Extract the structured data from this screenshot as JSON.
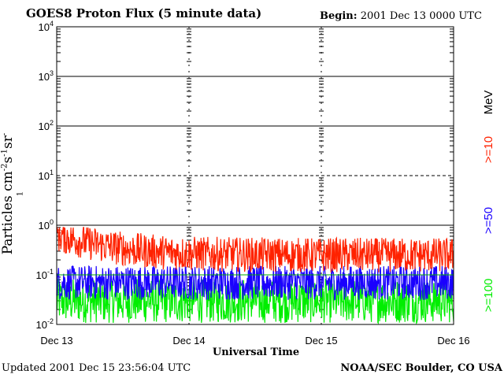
{
  "header": {
    "title": "GOES8 Proton Flux (5 minute data)",
    "begin_label": "Begin:",
    "begin_value": "2001 Dec 13 0000 UTC"
  },
  "footer": {
    "updated_label": "Updated",
    "updated_value": "2001 Dec 15 23:56:04 UTC",
    "credit": "NOAA/SEC Boulder, CO USA"
  },
  "colors": {
    "ge10": "#ff2200",
    "ge50": "#1a00ff",
    "ge100": "#00ee00",
    "threshold": "#00aa00"
  },
  "chart_data": {
    "type": "line",
    "title": "GOES8 Proton Flux (5 minute data)",
    "xlabel": "Universal Time",
    "ylabel": "Particles cm-2s-1sr-1",
    "yscale": "log",
    "ylim": [
      0.01,
      10000
    ],
    "ytick_labels": [
      {
        "base": "10",
        "exp": "-2",
        "value": 0.01
      },
      {
        "base": "10",
        "exp": "-1",
        "value": 0.1
      },
      {
        "base": "10",
        "exp": "0",
        "value": 1
      },
      {
        "base": "10",
        "exp": "1",
        "value": 10
      },
      {
        "base": "10",
        "exp": "2",
        "value": 100
      },
      {
        "base": "10",
        "exp": "3",
        "value": 1000
      },
      {
        "base": "10",
        "exp": "4",
        "value": 10000
      }
    ],
    "x_tick_labels": [
      "Dec 13",
      "Dec 14",
      "Dec 15",
      "Dec 16"
    ],
    "xlim_days": [
      0,
      3
    ],
    "units_label": "MeV",
    "series": [
      {
        "name": ">=10",
        "color": "#ff2200",
        "approx_level": 0.25,
        "range": [
          0.1,
          0.9
        ]
      },
      {
        "name": ">=50",
        "color": "#1a00ff",
        "approx_level": 0.07,
        "range": [
          0.03,
          0.15
        ]
      },
      {
        "name": ">=100",
        "color": "#00ee00",
        "approx_level": 0.03,
        "range": [
          0.01,
          0.1
        ]
      }
    ],
    "threshold_lines": [
      10,
      0.1
    ],
    "grid": true
  }
}
